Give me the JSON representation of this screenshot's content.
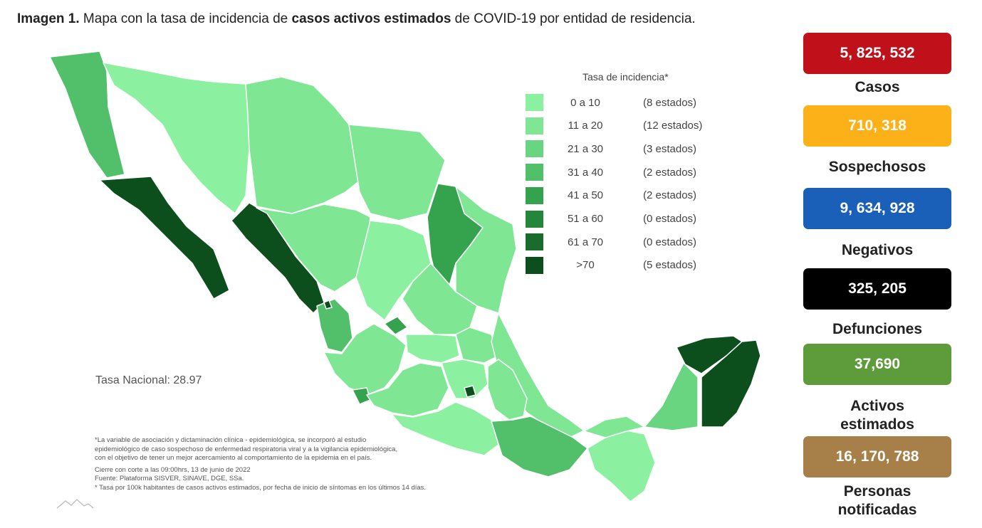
{
  "header": {
    "prefix": "Imagen 1.",
    "t1": " Mapa con la tasa de incidencia de ",
    "bold": "casos activos estimados",
    "t2": " de COVID-19 por entidad de residencia."
  },
  "legend": {
    "title": "Tasa de incidencia*",
    "items": [
      {
        "range": "0 a  10",
        "count": "(8 estados)",
        "color": "#8bf0a0"
      },
      {
        "range": "11 a  20",
        "count": "(12 estados)",
        "color": "#7fe694"
      },
      {
        "range": "21 a  30",
        "count": "(3 estados)",
        "color": "#6ad580"
      },
      {
        "range": "31 a  40",
        "count": "(2 estados)",
        "color": "#52c06a"
      },
      {
        "range": "41 a  50",
        "count": "(2 estados)",
        "color": "#35a24d"
      },
      {
        "range": "51 a  60",
        "count": "(0 estados)",
        "color": "#23863a"
      },
      {
        "range": "61 a  70",
        "count": "(0 estados)",
        "color": "#1a6b2c"
      },
      {
        "range": ">70",
        "count": "(5 estados)",
        "color": "#0d4f1c"
      }
    ]
  },
  "national_rate": "Tasa Nacional: 28.97",
  "notes": [
    "*La variable de asociación y dictaminación clínica - epidemiológica, se incorporó al estudio",
    "epidemiológico de caso sospechoso de enfermedad respiratoria viral y a la vigilancia epidemiológica,",
    "con el objetivo de tener un mejor acercamiento al comportamiento de la epidemia en el país.",
    " Cierre con corte a las 09:00hrs, 13 de junio de 2022",
    "Fuente: Plataforma SISVER, SINAVE, DGE, SSa.",
    "* Tasa por 100k habitantes de casos activos estimados, por fecha de inicio de síntomas en los últimos 14 días."
  ],
  "stats": [
    {
      "value": "5, 825, 532",
      "label": "Casos",
      "color": "#c0111b"
    },
    {
      "value": "710, 318",
      "label": "Sospechosos",
      "color": "#fbb117"
    },
    {
      "value": "9, 634, 928",
      "label": "Negativos",
      "color": "#1a60b8"
    },
    {
      "value": "325, 205",
      "label": "Defunciones",
      "color": "#000000"
    },
    {
      "value": "37,690",
      "label": "Activos estimados",
      "color": "#5e9b3a"
    },
    {
      "value": "16, 170, 788",
      "label": "Personas notificadas",
      "color": "#a68048"
    }
  ],
  "map_colors": {
    "border": "#ffffff",
    "light": "#8bf0a0",
    "light2": "#7fe694",
    "mid": "#6ad580",
    "mid2": "#52c06a",
    "dark": "#35a24d",
    "darkest": "#0d4f1c"
  }
}
